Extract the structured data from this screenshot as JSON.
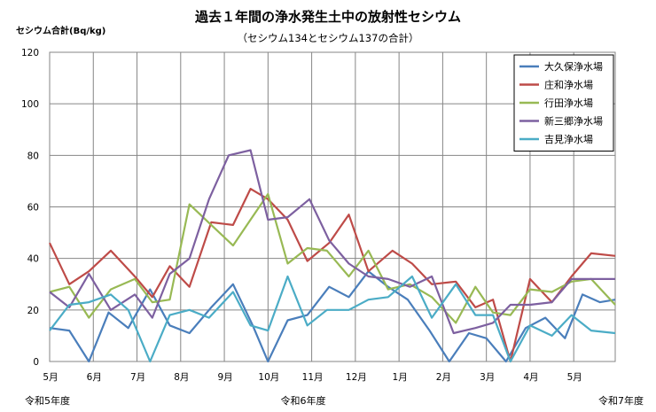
{
  "chart_data": {
    "type": "line",
    "title": "過去１年間の浄水発生土中の放射性セシウム",
    "subtitle": "（セシウム134とセシウム137の合計）",
    "ylabel": "セシウム合計(Bq/kg)",
    "xlabel": "",
    "ylim": [
      0,
      120
    ],
    "y_ticks": [
      0,
      20,
      40,
      60,
      80,
      100,
      120
    ],
    "x_ticks": [
      "5月",
      "6月",
      "7月",
      "8月",
      "9月",
      "10月",
      "11月",
      "12月",
      "1月",
      "2月",
      "3月",
      "4月",
      "5月"
    ],
    "era_labels": [
      "令和5年度",
      "令和6年度",
      "令和7年度"
    ],
    "grid": true,
    "legend_position": "top-right",
    "series": [
      {
        "name": "大久保浄水場",
        "color": "#4a7ebb",
        "x": [
          0,
          0.45,
          0.9,
          1.35,
          1.8,
          2.3,
          2.75,
          3.2,
          3.7,
          4.2,
          4.65,
          5.0,
          5.45,
          5.9,
          6.4,
          6.85,
          7.3,
          7.75,
          8.2,
          8.7,
          9.15,
          9.6,
          10.0,
          10.45,
          10.9,
          11.35,
          11.8,
          12.2,
          12.6,
          12.95
        ],
        "values": [
          13,
          12,
          0,
          19,
          13,
          28,
          14,
          11,
          21,
          30,
          14,
          0,
          16,
          18,
          29,
          25,
          35,
          29,
          24,
          12,
          0,
          11,
          9,
          0,
          13,
          17,
          9,
          26,
          23,
          24
        ]
      },
      {
        "name": "庄和浄水場",
        "color": "#be4b48",
        "x": [
          0,
          0.45,
          0.9,
          1.4,
          1.95,
          2.35,
          2.75,
          3.2,
          3.7,
          4.2,
          4.6,
          5.0,
          5.45,
          5.9,
          6.4,
          6.85,
          7.3,
          7.85,
          8.3,
          8.75,
          9.3,
          9.75,
          10.15,
          10.55,
          11.0,
          11.5,
          11.95,
          12.4,
          12.95
        ],
        "values": [
          46,
          30,
          35,
          43,
          33,
          25,
          37,
          29,
          54,
          53,
          67,
          63,
          55,
          39,
          46,
          57,
          35,
          43,
          38,
          30,
          31,
          21,
          24,
          0,
          32,
          23,
          33,
          42,
          41
        ]
      },
      {
        "name": "行田浄水場",
        "color": "#98b954",
        "x": [
          0,
          0.45,
          0.9,
          1.4,
          1.95,
          2.35,
          2.75,
          3.2,
          3.7,
          4.2,
          4.6,
          5.0,
          5.45,
          5.9,
          6.35,
          6.85,
          7.3,
          7.75,
          8.25,
          8.75,
          9.3,
          9.75,
          10.15,
          10.55,
          11.0,
          11.5,
          11.95,
          12.4,
          12.95
        ],
        "values": [
          27,
          29,
          17,
          28,
          32,
          23,
          24,
          61,
          53,
          45,
          55,
          65,
          38,
          44,
          43,
          33,
          43,
          28,
          30,
          25,
          15,
          29,
          19,
          18,
          28,
          27,
          31,
          32,
          22
        ]
      },
      {
        "name": "新三郷浄水場",
        "color": "#7d60a0",
        "x": [
          0,
          0.45,
          0.9,
          1.4,
          1.95,
          2.35,
          2.75,
          3.2,
          3.65,
          4.1,
          4.6,
          5.0,
          5.45,
          5.95,
          6.4,
          6.85,
          7.3,
          7.75,
          8.25,
          8.75,
          9.25,
          9.75,
          10.15,
          10.55,
          11.0,
          11.5,
          11.95,
          12.4,
          12.95
        ],
        "values": [
          27,
          21,
          34,
          20,
          26,
          17,
          34,
          40,
          63,
          80,
          82,
          55,
          56,
          63,
          47,
          38,
          33,
          32,
          29,
          33,
          11,
          13,
          15,
          22,
          22,
          23,
          32,
          32,
          32
        ]
      },
      {
        "name": "吉見浄水場",
        "color": "#4bacc6",
        "x": [
          0,
          0.45,
          0.9,
          1.4,
          1.8,
          2.3,
          2.75,
          3.2,
          3.65,
          4.2,
          4.6,
          5.0,
          5.45,
          5.9,
          6.35,
          6.85,
          7.3,
          7.75,
          8.3,
          8.75,
          9.3,
          9.75,
          10.15,
          10.55,
          11.0,
          11.5,
          11.95,
          12.4,
          12.95
        ],
        "values": [
          12,
          22,
          23,
          26,
          20,
          0,
          18,
          20,
          17,
          27,
          14,
          12,
          33,
          14,
          20,
          20,
          24,
          25,
          33,
          17,
          30,
          18,
          18,
          0,
          14,
          10,
          18,
          12,
          11
        ]
      }
    ]
  }
}
